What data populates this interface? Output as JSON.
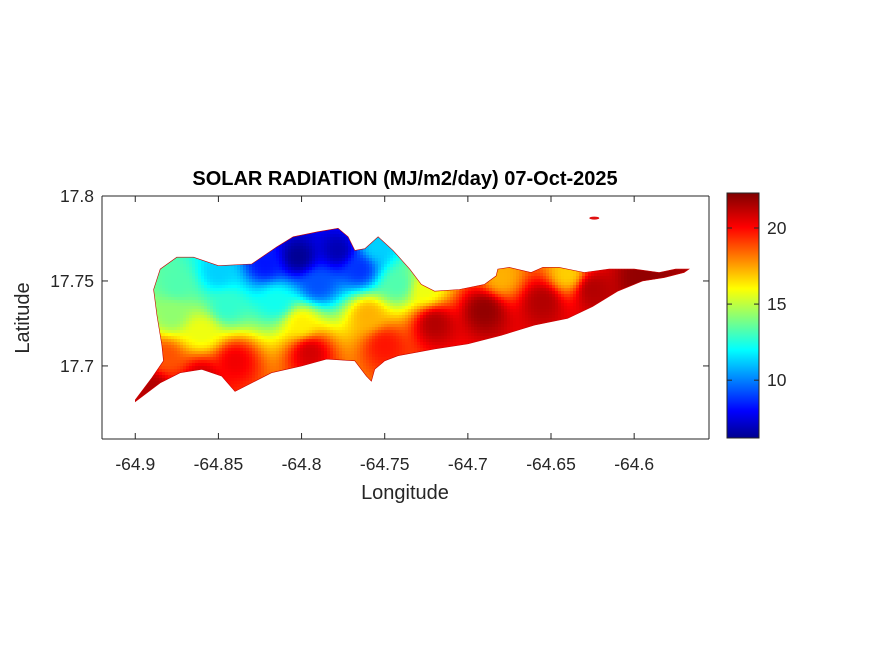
{
  "chart_data": {
    "type": "heatmap",
    "title": "SOLAR RADIATION (MJ/m2/day) 07-Oct-2025",
    "xlabel": "Longitude",
    "ylabel": "Latitude",
    "xlim": [
      -64.92,
      -64.555
    ],
    "ylim": [
      17.657,
      17.8
    ],
    "xticks": [
      -64.9,
      -64.85,
      -64.8,
      -64.75,
      -64.7,
      -64.65,
      -64.6
    ],
    "xtick_labels": [
      "-64.9",
      "-64.85",
      "-64.8",
      "-64.75",
      "-64.7",
      "-64.65",
      "-64.6"
    ],
    "yticks": [
      17.7,
      17.75,
      17.8
    ],
    "ytick_labels": [
      "17.7",
      "17.75",
      "17.8"
    ],
    "colormap": "jet",
    "clim": [
      6.2,
      22.3
    ],
    "colorbar_ticks": [
      10,
      15,
      20
    ],
    "colorbar_tick_labels": [
      "10",
      "15",
      "20"
    ],
    "grid": false,
    "region_outline_lonlat": [
      [
        -64.9,
        17.679
      ],
      [
        -64.885,
        17.69
      ],
      [
        -64.873,
        17.696
      ],
      [
        -64.86,
        17.698
      ],
      [
        -64.848,
        17.694
      ],
      [
        -64.84,
        17.685
      ],
      [
        -64.83,
        17.69
      ],
      [
        -64.818,
        17.696
      ],
      [
        -64.8,
        17.7
      ],
      [
        -64.785,
        17.704
      ],
      [
        -64.768,
        17.703
      ],
      [
        -64.761,
        17.694
      ],
      [
        -64.758,
        17.691
      ],
      [
        -64.756,
        17.698
      ],
      [
        -64.75,
        17.703
      ],
      [
        -64.742,
        17.706
      ],
      [
        -64.72,
        17.71
      ],
      [
        -64.7,
        17.713
      ],
      [
        -64.68,
        17.718
      ],
      [
        -64.66,
        17.724
      ],
      [
        -64.64,
        17.728
      ],
      [
        -64.625,
        17.735
      ],
      [
        -64.61,
        17.744
      ],
      [
        -64.595,
        17.75
      ],
      [
        -64.582,
        17.752
      ],
      [
        -64.57,
        17.755
      ],
      [
        -64.567,
        17.757
      ],
      [
        -64.575,
        17.757
      ],
      [
        -64.585,
        17.755
      ],
      [
        -64.6,
        17.757
      ],
      [
        -64.615,
        17.757
      ],
      [
        -64.63,
        17.755
      ],
      [
        -64.645,
        17.758
      ],
      [
        -64.655,
        17.758
      ],
      [
        -64.662,
        17.755
      ],
      [
        -64.675,
        17.758
      ],
      [
        -64.682,
        17.757
      ],
      [
        -64.683,
        17.753
      ],
      [
        -64.69,
        17.748
      ],
      [
        -64.705,
        17.745
      ],
      [
        -64.72,
        17.744
      ],
      [
        -64.728,
        17.748
      ],
      [
        -64.735,
        17.757
      ],
      [
        -64.745,
        17.768
      ],
      [
        -64.754,
        17.776
      ],
      [
        -64.762,
        17.769
      ],
      [
        -64.768,
        17.768
      ],
      [
        -64.772,
        17.776
      ],
      [
        -64.778,
        17.781
      ],
      [
        -64.79,
        17.779
      ],
      [
        -64.805,
        17.776
      ],
      [
        -64.815,
        17.77
      ],
      [
        -64.83,
        17.76
      ],
      [
        -64.85,
        17.759
      ],
      [
        -64.865,
        17.764
      ],
      [
        -64.875,
        17.764
      ],
      [
        -64.885,
        17.757
      ],
      [
        -64.889,
        17.745
      ],
      [
        -64.887,
        17.73
      ],
      [
        -64.884,
        17.712
      ],
      [
        -64.883,
        17.703
      ],
      [
        -64.89,
        17.693
      ],
      [
        -64.9,
        17.68
      ]
    ],
    "islet_lonlat": [
      -64.624,
      17.787
    ],
    "field_samples": [
      {
        "lon": -64.802,
        "lat": 17.764,
        "value": 6.5
      },
      {
        "lon": -64.778,
        "lat": 17.768,
        "value": 7.0
      },
      {
        "lon": -64.822,
        "lat": 17.76,
        "value": 8.5
      },
      {
        "lon": -64.79,
        "lat": 17.748,
        "value": 9.5
      },
      {
        "lon": -64.765,
        "lat": 17.757,
        "value": 9.0
      },
      {
        "lon": -64.755,
        "lat": 17.77,
        "value": 11.5
      },
      {
        "lon": -64.85,
        "lat": 17.755,
        "value": 11.5
      },
      {
        "lon": -64.875,
        "lat": 17.748,
        "value": 13.5
      },
      {
        "lon": -64.878,
        "lat": 17.73,
        "value": 14.5
      },
      {
        "lon": -64.845,
        "lat": 17.735,
        "value": 13.0
      },
      {
        "lon": -64.815,
        "lat": 17.738,
        "value": 12.5
      },
      {
        "lon": -64.742,
        "lat": 17.748,
        "value": 13.5
      },
      {
        "lon": -64.725,
        "lat": 17.745,
        "value": 16.0
      },
      {
        "lon": -64.68,
        "lat": 17.752,
        "value": 17.5
      },
      {
        "lon": -64.64,
        "lat": 17.754,
        "value": 17.0
      },
      {
        "lon": -64.86,
        "lat": 17.72,
        "value": 16.0
      },
      {
        "lon": -64.8,
        "lat": 17.725,
        "value": 16.5
      },
      {
        "lon": -64.76,
        "lat": 17.73,
        "value": 17.5
      },
      {
        "lon": -64.882,
        "lat": 17.705,
        "value": 19.0
      },
      {
        "lon": -64.84,
        "lat": 17.703,
        "value": 20.5
      },
      {
        "lon": -64.795,
        "lat": 17.708,
        "value": 21.0
      },
      {
        "lon": -64.75,
        "lat": 17.712,
        "value": 20.0
      },
      {
        "lon": -64.72,
        "lat": 17.725,
        "value": 21.5
      },
      {
        "lon": -64.69,
        "lat": 17.733,
        "value": 22.0
      },
      {
        "lon": -64.655,
        "lat": 17.738,
        "value": 21.5
      },
      {
        "lon": -64.625,
        "lat": 17.745,
        "value": 21.5
      },
      {
        "lon": -64.595,
        "lat": 17.752,
        "value": 22.0
      },
      {
        "lon": -64.89,
        "lat": 17.688,
        "value": 21.5
      },
      {
        "lon": -64.86,
        "lat": 17.693,
        "value": 21.0
      }
    ]
  }
}
